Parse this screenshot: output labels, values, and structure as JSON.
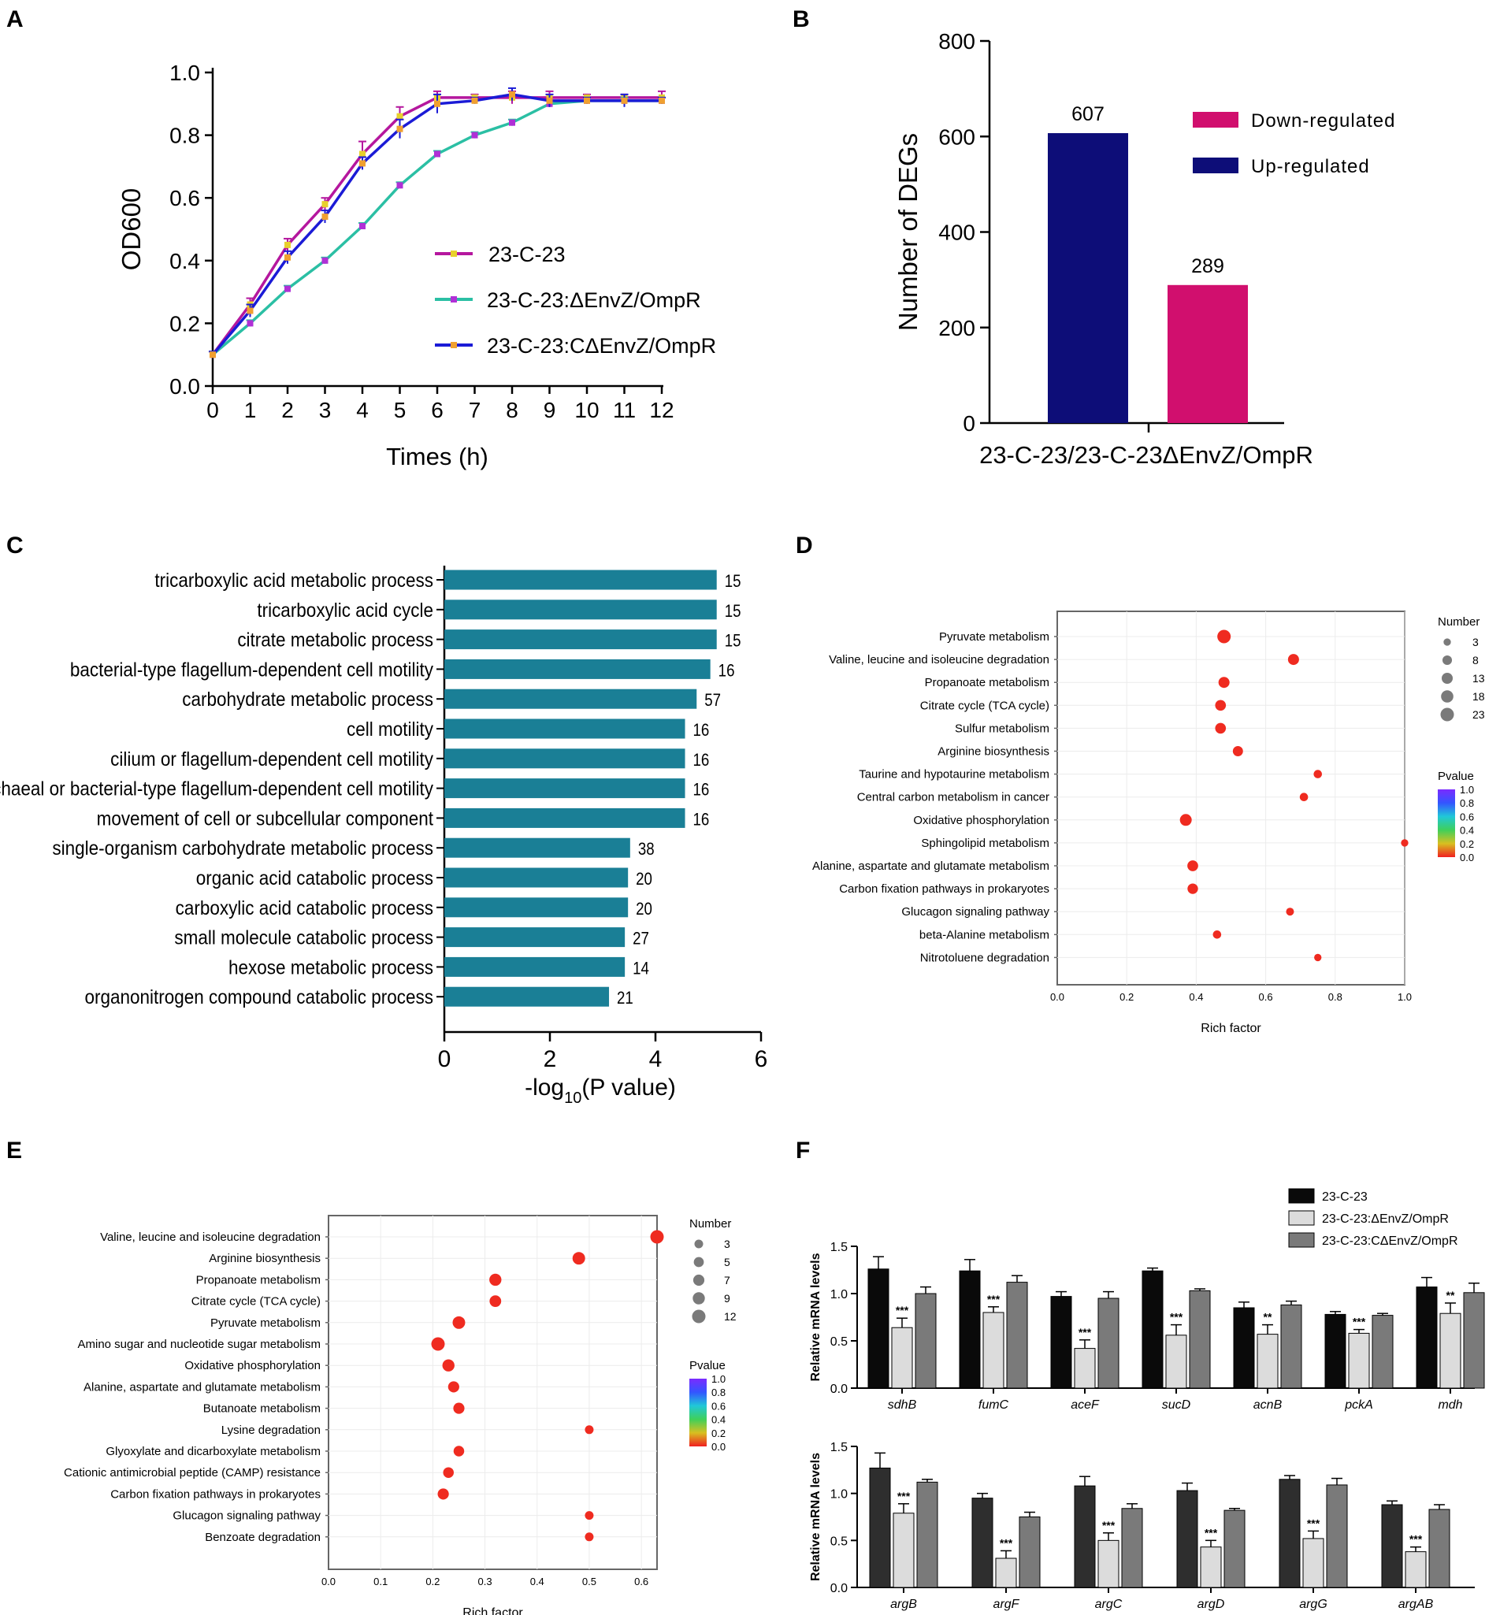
{
  "chart_data": [
    {
      "panel": "A",
      "type": "line",
      "xlabel": "Times (h)",
      "ylabel": "OD600",
      "x": [
        0,
        1,
        2,
        3,
        4,
        5,
        6,
        7,
        8,
        9,
        10,
        11,
        12
      ],
      "x_ticks": [
        "0",
        "1",
        "2",
        "3",
        "4",
        "5",
        "6",
        "7",
        "8",
        "9",
        "10",
        "11",
        "12"
      ],
      "y_ticks": [
        "0.0",
        "0.2",
        "0.4",
        "0.6",
        "0.8",
        "1.0"
      ],
      "ylim": [
        0,
        1.0
      ],
      "series": [
        {
          "name": "23-C-23",
          "color": "#b5179e",
          "marker_color": "#e8d12c",
          "values": [
            0.1,
            0.26,
            0.45,
            0.58,
            0.74,
            0.86,
            0.92,
            0.92,
            0.92,
            0.92,
            0.92,
            0.92,
            0.92
          ],
          "errors": [
            0.01,
            0.02,
            0.02,
            0.02,
            0.04,
            0.03,
            0.02,
            0.01,
            0.02,
            0.02,
            0.01,
            0.01,
            0.02
          ]
        },
        {
          "name": "23-C-23:ΔEnvZ/OmpR",
          "color": "#2bbfa4",
          "marker_color": "#b030d6",
          "values": [
            0.1,
            0.2,
            0.31,
            0.4,
            0.51,
            0.64,
            0.74,
            0.8,
            0.84,
            0.9,
            0.91,
            0.91,
            0.91
          ],
          "errors": [
            0.01,
            0.01,
            0.01,
            0.01,
            0.01,
            0.01,
            0.01,
            0.01,
            0.01,
            0.01,
            0.01,
            0.01,
            0.01
          ]
        },
        {
          "name": "23-C-23:CΔEnvZ/OmpR",
          "color": "#1b1bd6",
          "marker_color": "#f0a030",
          "values": [
            0.1,
            0.24,
            0.41,
            0.54,
            0.71,
            0.82,
            0.9,
            0.91,
            0.93,
            0.91,
            0.91,
            0.91,
            0.91
          ],
          "errors": [
            0.01,
            0.02,
            0.02,
            0.02,
            0.02,
            0.03,
            0.03,
            0.01,
            0.02,
            0.02,
            0.01,
            0.02,
            0.01
          ]
        }
      ]
    },
    {
      "panel": "B",
      "type": "bar",
      "ylabel": "Number of DEGs",
      "xlabel": "23-C-23/23-C-23ΔEnvZ/OmpR",
      "y_ticks": [
        "0",
        "200",
        "400",
        "600",
        "800"
      ],
      "ylim": [
        0,
        800
      ],
      "bars": [
        {
          "name": "Up-regulated",
          "value": 607,
          "label": "607",
          "color": "#0d0d78"
        },
        {
          "name": "Down-regulated",
          "value": 289,
          "label": "289",
          "color": "#d10f6e"
        }
      ],
      "legend": [
        {
          "name": "Down-regulated",
          "color": "#d10f6e"
        },
        {
          "name": "Up-regulated",
          "color": "#0d0d78"
        }
      ]
    },
    {
      "panel": "C",
      "type": "bar",
      "orientation": "horizontal",
      "xlabel_main": "-log",
      "xlabel_sub": "10",
      "xlabel_tail": "(P value)",
      "x_ticks": [
        "0",
        "2",
        "4",
        "6"
      ],
      "xlim": [
        0,
        6
      ],
      "color": "#1a7f96",
      "categories": [
        "tricarboxylic acid metabolic process",
        "tricarboxylic acid cycle",
        "citrate metabolic process",
        "bacterial-type flagellum-dependent cell motility",
        "carbohydrate metabolic process",
        "cell motility",
        "cilium or flagellum-dependent cell motility",
        "archaeal or bacterial-type flagellum-dependent cell motility",
        "movement of cell or subcellular component",
        "single-organism carbohydrate metabolic process",
        "organic acid catabolic process",
        "carboxylic acid catabolic process",
        "small molecule catabolic process",
        "hexose metabolic process",
        "organonitrogen compound catabolic process"
      ],
      "values": [
        5.16,
        5.16,
        5.16,
        5.04,
        4.78,
        4.56,
        4.56,
        4.56,
        4.56,
        3.52,
        3.48,
        3.48,
        3.42,
        3.42,
        3.12
      ],
      "counts": [
        "15",
        "15",
        "15",
        "16",
        "57",
        "16",
        "16",
        "16",
        "16",
        "38",
        "20",
        "20",
        "27",
        "14",
        "21"
      ]
    },
    {
      "panel": "D",
      "type": "scatter",
      "xlabel": "Rich factor",
      "xlim": [
        0,
        1.0
      ],
      "x_ticks": [
        "0.0",
        "0.2",
        "0.4",
        "0.6",
        "0.8",
        "1.0"
      ],
      "size_legend_title": "Number",
      "size_legend": [
        "3",
        "8",
        "13",
        "18",
        "23"
      ],
      "size_legend_values": [
        3,
        8,
        13,
        18,
        23
      ],
      "color_legend_title": "Pvalue",
      "color_ticks": [
        "1.0",
        "0.8",
        "0.6",
        "0.4",
        "0.2",
        "0.0"
      ],
      "categories": [
        "Pyruvate metabolism",
        "Valine, leucine and isoleucine degradation",
        "Propanoate metabolism",
        "Citrate cycle (TCA cycle)",
        "Sulfur metabolism",
        "Arginine biosynthesis",
        "Taurine and hypotaurine metabolism",
        "Central carbon metabolism in cancer",
        "Oxidative phosphorylation",
        "Sphingolipid metabolism",
        "Alanine, aspartate and glutamate metabolism",
        "Carbon fixation pathways in prokaryotes",
        "Glucagon signaling pathway",
        "beta-Alanine metabolism",
        "Nitrotoluene degradation"
      ],
      "x": [
        0.48,
        0.68,
        0.48,
        0.47,
        0.47,
        0.52,
        0.75,
        0.71,
        0.37,
        1.0,
        0.39,
        0.39,
        0.67,
        0.46,
        0.75
      ],
      "sizes": [
        23,
        13,
        13,
        12,
        12,
        10,
        5,
        5,
        16,
        3,
        12,
        11,
        4,
        5,
        3
      ]
    },
    {
      "panel": "E",
      "type": "scatter",
      "xlabel": "Rich factor",
      "xlim": [
        0,
        0.63
      ],
      "x_ticks": [
        "0.0",
        "0.1",
        "0.2",
        "0.3",
        "0.4",
        "0.5",
        "0.6"
      ],
      "size_legend_title": "Number",
      "size_legend": [
        "3",
        "5",
        "7",
        "9",
        "12"
      ],
      "size_legend_values": [
        3,
        5,
        7,
        9,
        12
      ],
      "color_legend_title": "Pvalue",
      "color_ticks": [
        "1.0",
        "0.8",
        "0.6",
        "0.4",
        "0.2",
        "0.0"
      ],
      "categories": [
        "Valine, leucine and isoleucine degradation",
        "Arginine biosynthesis",
        "Propanoate metabolism",
        "Citrate cycle (TCA cycle)",
        "Pyruvate metabolism",
        "Amino sugar and nucleotide sugar metabolism",
        "Oxidative phosphorylation",
        "Alanine, aspartate and glutamate metabolism",
        "Butanoate metabolism",
        "Lysine degradation",
        "Glyoxylate and dicarboxylate metabolism",
        "Cationic antimicrobial peptide (CAMP) resistance",
        "Carbon fixation pathways in prokaryotes",
        "Glucagon signaling pathway",
        "Benzoate degradation"
      ],
      "x": [
        0.63,
        0.48,
        0.32,
        0.32,
        0.25,
        0.21,
        0.23,
        0.24,
        0.25,
        0.5,
        0.25,
        0.23,
        0.22,
        0.5,
        0.5
      ],
      "sizes": [
        12,
        10,
        9,
        8,
        10,
        12,
        9,
        7,
        7,
        3,
        6,
        6,
        7,
        3,
        3
      ]
    },
    {
      "panel": "F",
      "type": "bar",
      "ylabel": "Relative mRNA levels",
      "legend": [
        {
          "name": "23-C-23",
          "color": "#0a0a0a"
        },
        {
          "name": "23-C-23:ΔEnvZ/OmpR",
          "color": "#dcdcdc"
        },
        {
          "name": "23-C-23:CΔEnvZ/OmpR",
          "color": "#7a7a7a"
        }
      ],
      "subplots": [
        {
          "categories": [
            "sdhB",
            "fumC",
            "aceF",
            "sucD",
            "acnB",
            "pckA",
            "mdh"
          ],
          "y_ticks": [
            "0.0",
            "0.5",
            "1.0",
            "1.5"
          ],
          "ylim": [
            0,
            1.5
          ],
          "first_color": "#0a0a0a",
          "series": [
            {
              "name": "23-C-23",
              "values": [
                1.26,
                1.24,
                0.97,
                1.24,
                0.85,
                0.78,
                1.07
              ],
              "errors": [
                0.13,
                0.12,
                0.05,
                0.03,
                0.06,
                0.03,
                0.1
              ]
            },
            {
              "name": "23-C-23:ΔEnvZ/OmpR",
              "values": [
                0.64,
                0.8,
                0.42,
                0.56,
                0.57,
                0.58,
                0.79
              ],
              "errors": [
                0.1,
                0.06,
                0.09,
                0.11,
                0.1,
                0.04,
                0.11
              ]
            },
            {
              "name": "23-C-23:CΔEnvZ/OmpR",
              "values": [
                1.0,
                1.12,
                0.95,
                1.03,
                0.88,
                0.77,
                1.01
              ],
              "errors": [
                0.07,
                0.07,
                0.07,
                0.02,
                0.04,
                0.02,
                0.1
              ]
            }
          ],
          "significance": [
            "***",
            "***",
            "***",
            "***",
            "**",
            "***",
            "**"
          ]
        },
        {
          "categories": [
            "argB",
            "argF",
            "argC",
            "argD",
            "argG",
            "argAB"
          ],
          "y_ticks": [
            "0.0",
            "0.5",
            "1.0",
            "1.5"
          ],
          "ylim": [
            0,
            1.5
          ],
          "first_color": "#2e2e2e",
          "series": [
            {
              "name": "23-C-23",
              "values": [
                1.27,
                0.95,
                1.08,
                1.03,
                1.15,
                0.88
              ],
              "errors": [
                0.16,
                0.05,
                0.1,
                0.08,
                0.04,
                0.04
              ]
            },
            {
              "name": "23-C-23:ΔEnvZ/OmpR",
              "values": [
                0.79,
                0.31,
                0.5,
                0.43,
                0.52,
                0.38
              ],
              "errors": [
                0.1,
                0.08,
                0.08,
                0.07,
                0.08,
                0.05
              ]
            },
            {
              "name": "23-C-23:CΔEnvZ/OmpR",
              "values": [
                1.12,
                0.75,
                0.84,
                0.82,
                1.09,
                0.83
              ],
              "errors": [
                0.03,
                0.05,
                0.05,
                0.02,
                0.07,
                0.05
              ]
            }
          ],
          "significance": [
            "***",
            "***",
            "***",
            "***",
            "***",
            "***"
          ]
        }
      ]
    }
  ],
  "panel_letters": {
    "a": "A",
    "b": "B",
    "c": "C",
    "d": "D",
    "e": "E",
    "f": "F"
  }
}
